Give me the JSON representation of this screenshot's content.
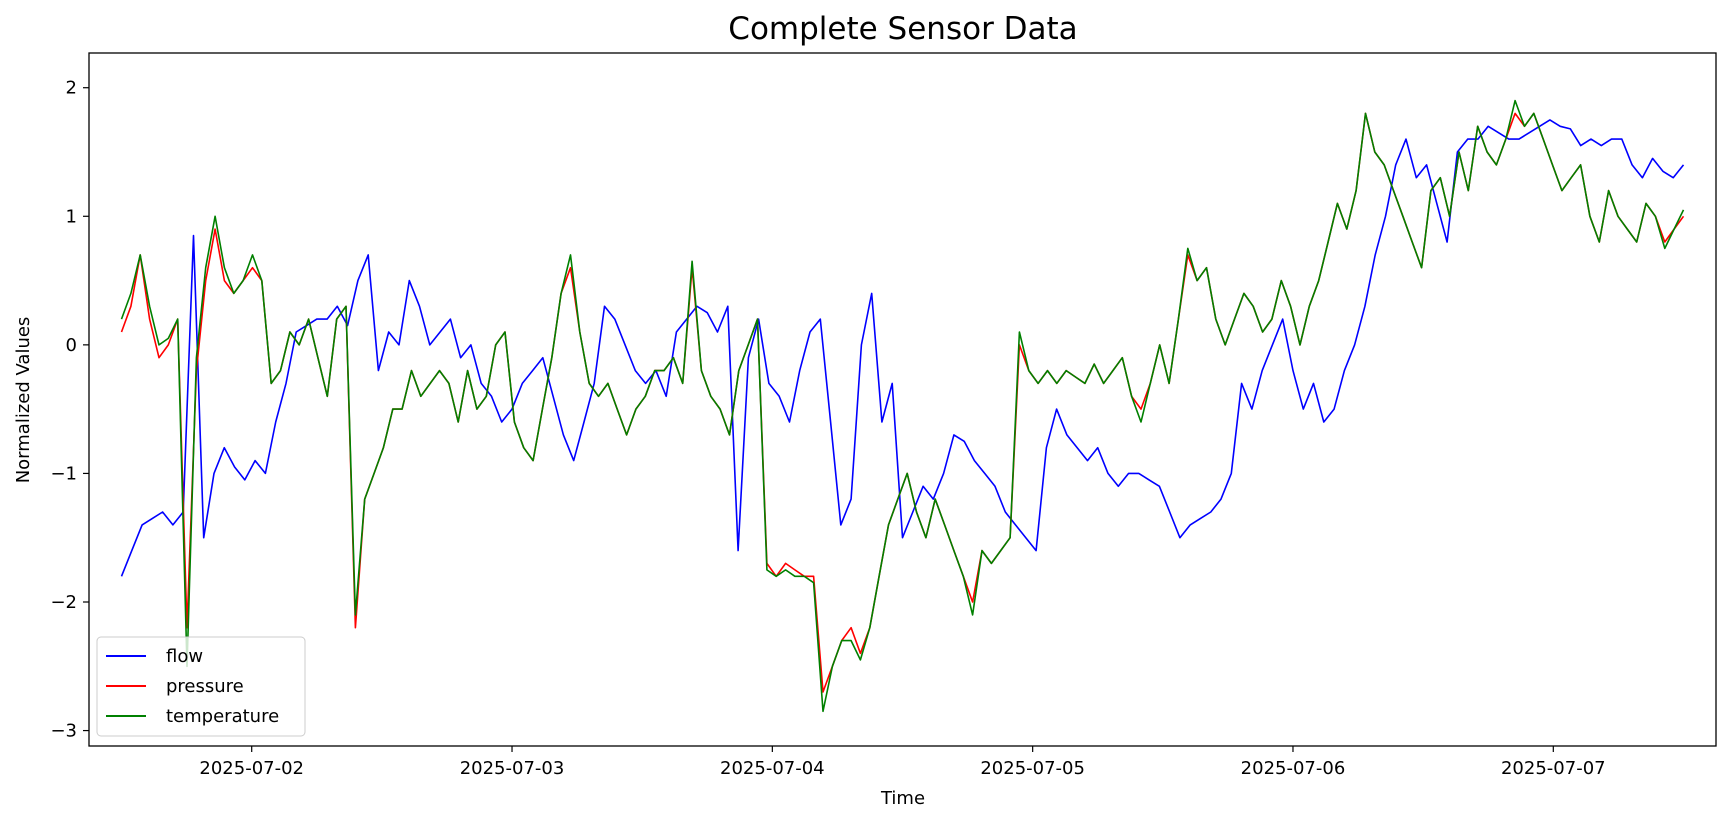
{
  "chart_data": {
    "type": "line",
    "title": "Complete Sensor Data",
    "xlabel": "Time",
    "ylabel": "Normalized Values",
    "x_start": "2025-07-01 12:00",
    "x_end": "2025-07-07 12:00",
    "xlim": [
      "2025-07-01 09:00",
      "2025-07-07 15:00"
    ],
    "ylim": [
      -3.12,
      2.27
    ],
    "x_ticks": [
      "2025-07-02",
      "2025-07-03",
      "2025-07-04",
      "2025-07-05",
      "2025-07-06",
      "2025-07-07"
    ],
    "y_ticks": [
      -3,
      -2,
      -1,
      0,
      1,
      2
    ],
    "y_tick_labels": [
      "−3",
      "−2",
      "−1",
      "0",
      "1",
      "2"
    ],
    "grid": false,
    "legend_position": "lower-left",
    "series": [
      {
        "name": "flow",
        "color": "#0000ff",
        "values": [
          -1.8,
          -1.6,
          -1.4,
          -1.35,
          -1.3,
          -1.4,
          -1.3,
          0.85,
          -1.5,
          -1.0,
          -0.8,
          -0.95,
          -1.05,
          -0.9,
          -1.0,
          -0.6,
          -0.3,
          0.1,
          0.15,
          0.2,
          0.2,
          0.3,
          0.15,
          0.5,
          0.7,
          -0.2,
          0.1,
          0.0,
          0.5,
          0.3,
          0.0,
          0.1,
          0.2,
          -0.1,
          0.0,
          -0.3,
          -0.4,
          -0.6,
          -0.5,
          -0.3,
          -0.2,
          -0.1,
          -0.4,
          -0.7,
          -0.9,
          -0.6,
          -0.3,
          0.3,
          0.2,
          0.0,
          -0.2,
          -0.3,
          -0.2,
          -0.4,
          0.1,
          0.2,
          0.3,
          0.25,
          0.1,
          0.3,
          -1.6,
          -0.1,
          0.2,
          -0.3,
          -0.4,
          -0.6,
          -0.2,
          0.1,
          0.2,
          -0.6,
          -1.4,
          -1.2,
          0.0,
          0.4,
          -0.6,
          -0.3,
          -1.5,
          -1.3,
          -1.1,
          -1.2,
          -1.0,
          -0.7,
          -0.75,
          -0.9,
          -1.0,
          -1.1,
          -1.3,
          -1.4,
          -1.5,
          -1.6,
          -0.8,
          -0.5,
          -0.7,
          -0.8,
          -0.9,
          -0.8,
          -1.0,
          -1.1,
          -1.0,
          -1.0,
          -1.05,
          -1.1,
          -1.3,
          -1.5,
          -1.4,
          -1.35,
          -1.3,
          -1.2,
          -1.0,
          -0.3,
          -0.5,
          -0.2,
          0.0,
          0.2,
          -0.2,
          -0.5,
          -0.3,
          -0.6,
          -0.5,
          -0.2,
          0.0,
          0.3,
          0.7,
          1.0,
          1.4,
          1.6,
          1.3,
          1.4,
          1.1,
          0.8,
          1.5,
          1.6,
          1.6,
          1.7,
          1.65,
          1.6,
          1.6,
          1.65,
          1.7,
          1.75,
          1.7,
          1.68,
          1.55,
          1.6,
          1.55,
          1.6,
          1.6,
          1.4,
          1.3,
          1.45,
          1.35,
          1.3,
          1.4
        ]
      },
      {
        "name": "pressure",
        "color": "#ff0000",
        "values": [
          0.1,
          0.3,
          0.7,
          0.2,
          -0.1,
          0.0,
          0.2,
          -2.2,
          -0.2,
          0.5,
          0.9,
          0.5,
          0.4,
          0.5,
          0.6,
          0.5,
          -0.3,
          -0.2,
          0.1,
          0.0,
          0.2,
          -0.1,
          -0.4,
          0.2,
          0.3,
          -2.2,
          -1.2,
          -1.0,
          -0.8,
          -0.5,
          -0.5,
          -0.2,
          -0.4,
          -0.3,
          -0.2,
          -0.3,
          -0.6,
          -0.2,
          -0.5,
          -0.4,
          0.0,
          0.1,
          -0.6,
          -0.8,
          -0.9,
          -0.5,
          -0.1,
          0.4,
          0.6,
          0.1,
          -0.3,
          -0.4,
          -0.3,
          -0.5,
          -0.7,
          -0.5,
          -0.4,
          -0.2,
          -0.2,
          -0.1,
          -0.3,
          0.6,
          -0.2,
          -0.4,
          -0.5,
          -0.7,
          -0.2,
          0.0,
          0.2,
          -1.7,
          -1.8,
          -1.7,
          -1.75,
          -1.8,
          -1.8,
          -2.7,
          -2.5,
          -2.3,
          -2.2,
          -2.4,
          -2.2,
          -1.8,
          -1.4,
          -1.2,
          -1.0,
          -1.3,
          -1.5,
          -1.2,
          -1.4,
          -1.6,
          -1.8,
          -2.0,
          -1.6,
          -1.7,
          -1.6,
          -1.5,
          0.0,
          -0.2,
          -0.3,
          -0.2,
          -0.3,
          -0.2,
          -0.25,
          -0.3,
          -0.15,
          -0.3,
          -0.2,
          -0.1,
          -0.4,
          -0.5,
          -0.3,
          0.0,
          -0.3,
          0.2,
          0.7,
          0.5,
          0.6,
          0.2,
          0.0,
          0.2,
          0.4,
          0.3,
          0.1,
          0.2,
          0.5,
          0.3,
          0.0,
          0.3,
          0.5,
          0.8,
          1.1,
          0.9,
          1.2,
          1.8,
          1.5,
          1.4,
          1.2,
          1.0,
          0.8,
          0.6,
          1.2,
          1.3,
          1.0,
          1.5,
          1.2,
          1.7,
          1.5,
          1.4,
          1.6,
          1.8,
          1.7,
          1.8,
          1.6,
          1.4,
          1.2,
          1.3,
          1.4,
          1.0,
          0.8,
          1.2,
          1.0,
          0.9,
          0.8,
          1.1,
          1.0,
          0.8,
          0.9,
          1.0
        ]
      },
      {
        "name": "temperature",
        "color": "#008000",
        "values": [
          0.2,
          0.4,
          0.7,
          0.3,
          0.0,
          0.05,
          0.2,
          -2.5,
          -0.1,
          0.6,
          1.0,
          0.6,
          0.4,
          0.5,
          0.7,
          0.5,
          -0.3,
          -0.2,
          0.1,
          0.0,
          0.2,
          -0.1,
          -0.4,
          0.2,
          0.3,
          -2.1,
          -1.2,
          -1.0,
          -0.8,
          -0.5,
          -0.5,
          -0.2,
          -0.4,
          -0.3,
          -0.2,
          -0.3,
          -0.6,
          -0.2,
          -0.5,
          -0.4,
          0.0,
          0.1,
          -0.6,
          -0.8,
          -0.9,
          -0.5,
          -0.1,
          0.4,
          0.7,
          0.1,
          -0.3,
          -0.4,
          -0.3,
          -0.5,
          -0.7,
          -0.5,
          -0.4,
          -0.2,
          -0.2,
          -0.1,
          -0.3,
          0.65,
          -0.2,
          -0.4,
          -0.5,
          -0.7,
          -0.2,
          0.0,
          0.2,
          -1.75,
          -1.8,
          -1.75,
          -1.8,
          -1.8,
          -1.85,
          -2.85,
          -2.5,
          -2.3,
          -2.3,
          -2.45,
          -2.2,
          -1.8,
          -1.4,
          -1.2,
          -1.0,
          -1.3,
          -1.5,
          -1.2,
          -1.4,
          -1.6,
          -1.8,
          -2.1,
          -1.6,
          -1.7,
          -1.6,
          -1.5,
          0.1,
          -0.2,
          -0.3,
          -0.2,
          -0.3,
          -0.2,
          -0.25,
          -0.3,
          -0.15,
          -0.3,
          -0.2,
          -0.1,
          -0.4,
          -0.6,
          -0.3,
          0.0,
          -0.3,
          0.2,
          0.75,
          0.5,
          0.6,
          0.2,
          0.0,
          0.2,
          0.4,
          0.3,
          0.1,
          0.2,
          0.5,
          0.3,
          0.0,
          0.3,
          0.5,
          0.8,
          1.1,
          0.9,
          1.2,
          1.8,
          1.5,
          1.4,
          1.2,
          1.0,
          0.8,
          0.6,
          1.2,
          1.3,
          1.0,
          1.5,
          1.2,
          1.7,
          1.5,
          1.4,
          1.6,
          1.9,
          1.7,
          1.8,
          1.6,
          1.4,
          1.2,
          1.3,
          1.4,
          1.0,
          0.8,
          1.2,
          1.0,
          0.9,
          0.8,
          1.1,
          1.0,
          0.75,
          0.9,
          1.05
        ]
      }
    ]
  }
}
